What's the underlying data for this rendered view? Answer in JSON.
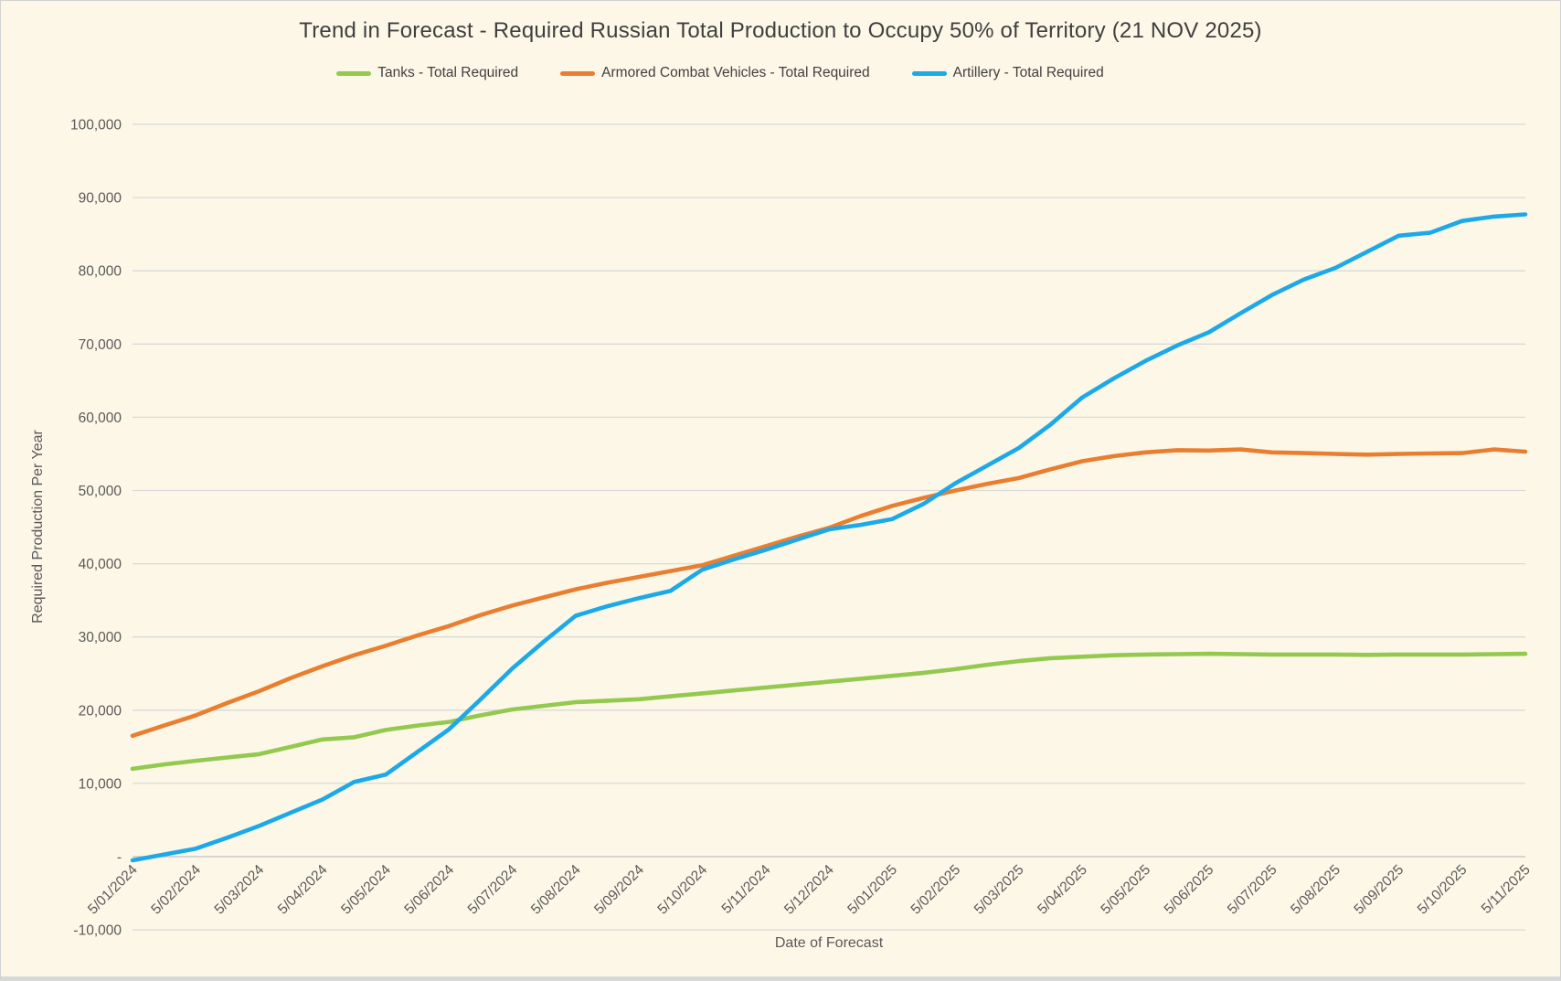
{
  "title": "Trend in Forecast - Required Russian Total Production to Occupy 50% of Territory (21 NOV 2025)",
  "axes": {
    "x_title": "Date of Forecast",
    "y_title": "Required Production Per Year"
  },
  "colors": {
    "background": "#FDF7E7",
    "grid": "#D9D9D9",
    "zero_line": "#C9C9C9",
    "title_text": "#3F3F3F",
    "axis_text": "#595959"
  },
  "chart_data": {
    "type": "line",
    "title": "Trend in Forecast - Required Russian Total Production to Occupy 50% of Territory (21 NOV 2025)",
    "xlabel": "Date of Forecast",
    "ylabel": "Required Production Per Year",
    "ylim": [
      -10000,
      100000
    ],
    "y_tick_step": 10000,
    "y_zero_label": "-",
    "grid": "horizontal",
    "legend_position": "top",
    "x_labels": [
      "5/01/2024",
      "5/02/2024",
      "5/03/2024",
      "5/04/2024",
      "5/05/2024",
      "5/06/2024",
      "5/07/2024",
      "5/08/2024",
      "5/09/2024",
      "5/10/2024",
      "5/11/2024",
      "5/12/2024",
      "5/01/2025",
      "5/02/2025",
      "5/03/2025",
      "5/04/2025",
      "5/05/2025",
      "5/06/2025",
      "5/07/2025",
      "5/08/2025",
      "5/09/2025",
      "5/10/2025",
      "5/11/2025"
    ],
    "x_step_months": 0.5,
    "series": [
      {
        "name": "Tanks - Total Required",
        "color": "#93C94E",
        "values": [
          12000,
          12600,
          13100,
          13550,
          14000,
          15000,
          16000,
          16300,
          17300,
          17900,
          18400,
          19300,
          20100,
          20600,
          21100,
          21300,
          21500,
          21900,
          22300,
          22700,
          23100,
          23500,
          23900,
          24300,
          24700,
          25100,
          25600,
          26200,
          26700,
          27100,
          27300,
          27500,
          27600,
          27650,
          27700,
          27650,
          27600,
          27600,
          27600,
          27550,
          27600,
          27600,
          27600,
          27650,
          27700
        ]
      },
      {
        "name": "Armored Combat Vehicles - Total Required",
        "color": "#E97E30",
        "values": [
          16500,
          17900,
          19300,
          21000,
          22600,
          24400,
          26000,
          27500,
          28800,
          30200,
          31500,
          33000,
          34300,
          35400,
          36500,
          37400,
          38200,
          39000,
          39800,
          41100,
          42400,
          43700,
          44900,
          46500,
          47900,
          49000,
          50000,
          50900,
          51700,
          52900,
          54000,
          54700,
          55200,
          55500,
          55450,
          55600,
          55200,
          55100,
          55000,
          54900,
          55000,
          55050,
          55100,
          55600,
          55300
        ]
      },
      {
        "name": "Artillery - Total Required",
        "color": "#1BA9E8",
        "values": [
          -500,
          300,
          1100,
          2600,
          4200,
          6000,
          7800,
          10200,
          11200,
          14300,
          17400,
          21500,
          25700,
          29400,
          32900,
          34200,
          35300,
          36300,
          39200,
          40600,
          41900,
          43300,
          44700,
          45300,
          46100,
          48200,
          51000,
          53400,
          55800,
          59000,
          62700,
          65300,
          67700,
          69800,
          71600,
          74200,
          76700,
          78800,
          80400,
          82600,
          84800,
          85200,
          86800,
          87400,
          87700
        ]
      }
    ]
  }
}
